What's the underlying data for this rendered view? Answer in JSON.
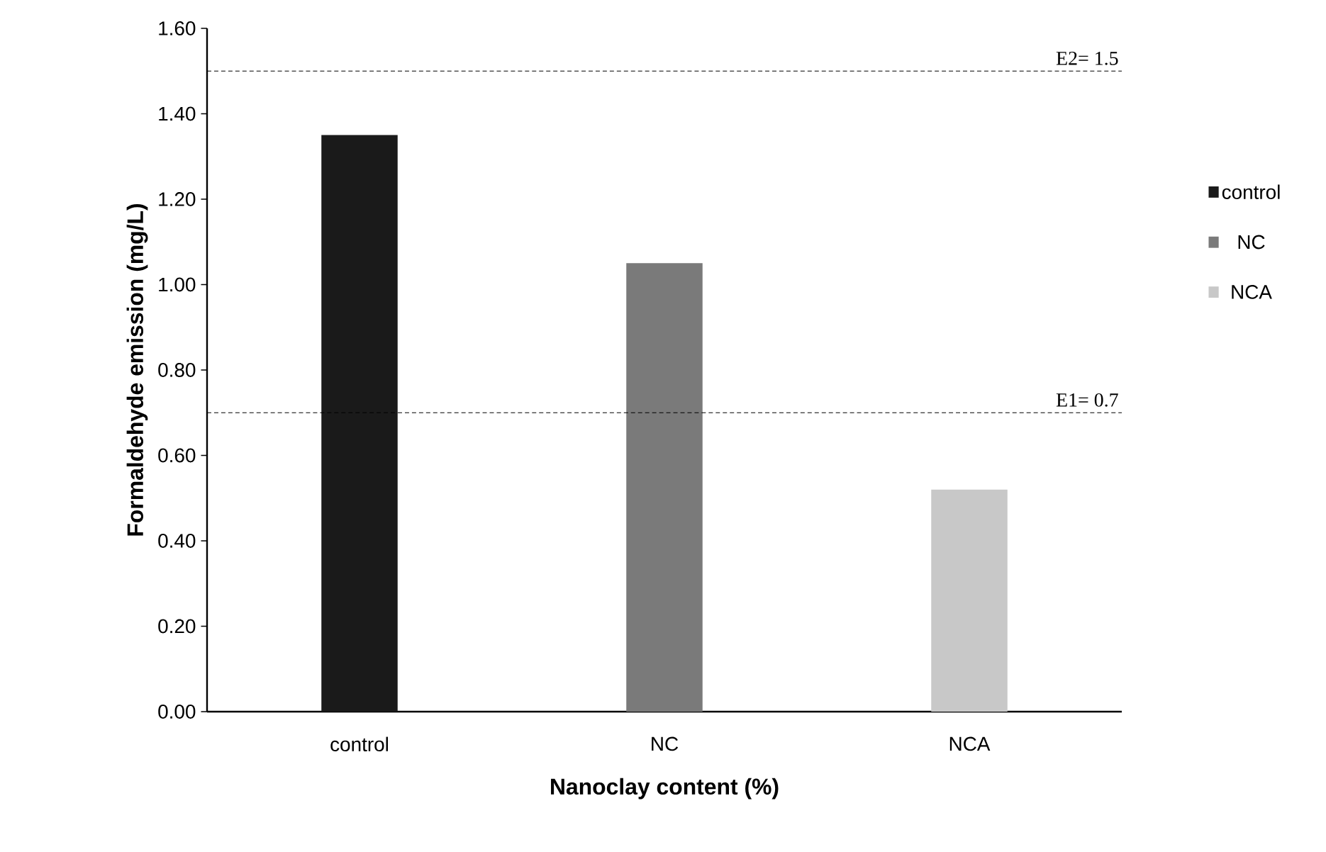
{
  "chart_data": {
    "type": "bar",
    "xlabel": "Nanoclay content (%)",
    "ylabel": "Formaldehyde emission (mg/L)",
    "categories": [
      "control",
      "NC",
      "NCA"
    ],
    "series": [
      {
        "name": "control",
        "color": "#1a1a1a",
        "values": [
          1.35,
          null,
          null
        ]
      },
      {
        "name": "NC",
        "color": "#7a7a7a",
        "values": [
          null,
          1.05,
          null
        ]
      },
      {
        "name": "NCA",
        "color": "#c8c8c8",
        "values": [
          null,
          null,
          0.52
        ]
      }
    ],
    "ylim": [
      0,
      1.6
    ],
    "yticks": [
      {
        "value": 0,
        "label": "0.00"
      },
      {
        "value": 0.2,
        "label": "0.20"
      },
      {
        "value": 0.4,
        "label": "0.40"
      },
      {
        "value": 0.6,
        "label": "0.60"
      },
      {
        "value": 0.8,
        "label": "0.80"
      },
      {
        "value": 1.0,
        "label": "1.00"
      },
      {
        "value": 1.2,
        "label": "1.20"
      },
      {
        "value": 1.4,
        "label": "1.40"
      },
      {
        "value": 1.6,
        "label": "1.60"
      }
    ],
    "ref_lines": [
      {
        "axis": "y",
        "value": 1.5,
        "label": "E2= 1.5",
        "color": "#000000",
        "line_style": "dashed"
      },
      {
        "axis": "y",
        "value": 0.7,
        "label": "E1= 0.7",
        "color": "#000000",
        "line_style": "dashed"
      }
    ],
    "legend": "right",
    "grid": false
  }
}
